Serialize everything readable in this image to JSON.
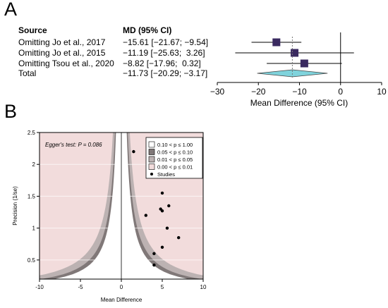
{
  "panelA": {
    "label": "A",
    "header_source": "Source",
    "header_md": "MD (95% CI)",
    "rows": [
      {
        "source": "Omitting Jo et al., 2017",
        "ci_text": "−15.61 [−21.67; −9.54]",
        "md": -15.61,
        "lo": -21.67,
        "hi": -9.54
      },
      {
        "source": "Omitting Jo et al., 2015",
        "ci_text": "−11.19 [−25.63;  3.26]",
        "md": -11.19,
        "lo": -25.63,
        "hi": 3.26
      },
      {
        "source": "Omitting Tsou et al., 2020",
        "ci_text": "−8.82 [−17.96;  0.32]",
        "md": -8.82,
        "lo": -17.96,
        "hi": 0.32
      }
    ],
    "total": {
      "source": "Total",
      "ci_text": "−11.73 [−20.29; −3.17]",
      "md": -11.73,
      "lo": -20.29,
      "hi": -3.17
    },
    "xlabel": "Mean Difference (95% CI)",
    "ticks": [
      -30,
      -20,
      -10,
      0,
      10
    ],
    "xlim": [
      -30,
      10
    ],
    "colors": {
      "square": "#3a2a60",
      "diamond": "#7fd3dc"
    }
  },
  "panelB": {
    "label": "B",
    "annotation": "Egger's test: P = 0.086",
    "xlabel": "Mean Difference",
    "ylabel": "Precision (1/se)",
    "xticks": [
      -10,
      -5,
      0,
      5,
      10
    ],
    "yticks": [
      0.5,
      1,
      1.5,
      2,
      2.5
    ],
    "xlim": [
      -10,
      10
    ],
    "ylim": [
      0.2,
      2.5
    ],
    "legend": [
      {
        "label": "0.10 < p ≤ 1.00",
        "color": "#ffffff"
      },
      {
        "label": "0.05 < p ≤ 0.10",
        "color": "#807878"
      },
      {
        "label": "0.01 < p ≤ 0.05",
        "color": "#bcb2b2"
      },
      {
        "label": "0.00 < p ≤ 0.01",
        "color": "#f2dcdc"
      },
      {
        "label": "Studies",
        "color": "#000000"
      }
    ]
  },
  "chart_data": [
    {
      "type": "forest",
      "categories": [
        "Omitting Jo et al., 2017",
        "Omitting Jo et al., 2015",
        "Omitting Tsou et al., 2020",
        "Total"
      ],
      "values": [
        -15.61,
        -11.19,
        -8.82,
        -11.73
      ],
      "ci_lower": [
        -21.67,
        -25.63,
        -17.96,
        -20.29
      ],
      "ci_upper": [
        -9.54,
        3.26,
        0.32,
        -3.17
      ],
      "xlabel": "Mean Difference (95% CI)",
      "xlim": [
        -30,
        10
      ]
    },
    {
      "type": "scatter",
      "xlabel": "Mean Difference",
      "ylabel": "Precision (1/se)",
      "xlim": [
        -10,
        10
      ],
      "ylim": [
        0.2,
        2.5
      ],
      "points": [
        {
          "x": 1.5,
          "y": 2.2
        },
        {
          "x": 5.0,
          "y": 1.55
        },
        {
          "x": 5.8,
          "y": 1.35
        },
        {
          "x": 4.8,
          "y": 1.3
        },
        {
          "x": 5.0,
          "y": 1.27
        },
        {
          "x": 3.0,
          "y": 1.2
        },
        {
          "x": 5.6,
          "y": 1.0
        },
        {
          "x": 7.0,
          "y": 0.85
        },
        {
          "x": 5.0,
          "y": 0.7
        },
        {
          "x": 4.0,
          "y": 0.6
        },
        {
          "x": 4.0,
          "y": 0.42
        }
      ],
      "legend_position": "top-right"
    }
  ]
}
